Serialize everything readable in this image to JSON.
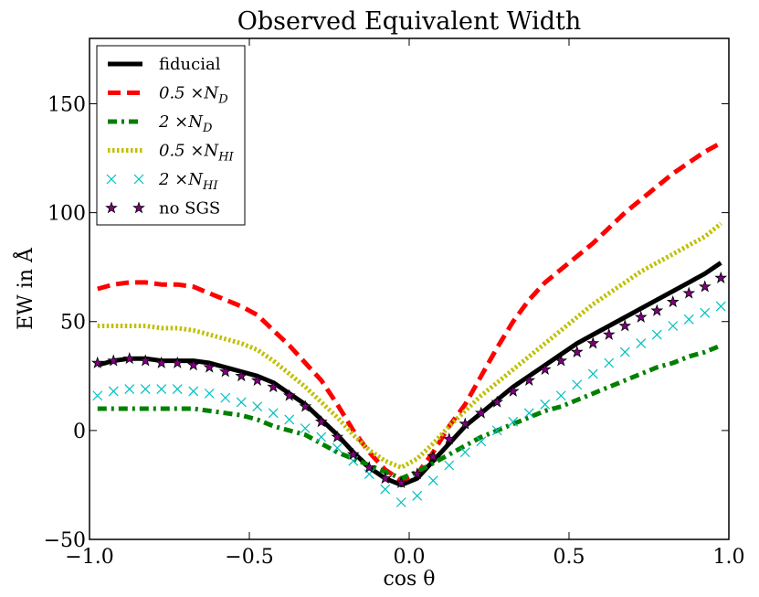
{
  "chart_data": {
    "type": "line",
    "title": "Observed Equivalent Width",
    "xlabel": "cos θ",
    "ylabel": "EW in Å",
    "xlim": [
      -1.0,
      1.0
    ],
    "ylim": [
      -50,
      180
    ],
    "xticks": [
      -1.0,
      -0.5,
      0.0,
      0.5,
      1.0
    ],
    "xtick_labels": [
      "−1.0",
      "−0.5",
      "0.0",
      "0.5",
      "1.0"
    ],
    "yticks": [
      -50,
      0,
      50,
      100,
      150
    ],
    "ytick_labels": [
      "−50",
      "0",
      "50",
      "100",
      "150"
    ],
    "grid": false,
    "legend_position": "top-left",
    "x": [
      -0.975,
      -0.925,
      -0.875,
      -0.825,
      -0.775,
      -0.725,
      -0.675,
      -0.625,
      -0.575,
      -0.525,
      -0.475,
      -0.425,
      -0.375,
      -0.325,
      -0.275,
      -0.225,
      -0.175,
      -0.125,
      -0.075,
      -0.025,
      0.025,
      0.075,
      0.125,
      0.175,
      0.225,
      0.275,
      0.325,
      0.375,
      0.425,
      0.475,
      0.525,
      0.575,
      0.625,
      0.675,
      0.725,
      0.775,
      0.825,
      0.875,
      0.925,
      0.975
    ],
    "series": [
      {
        "name": "fiducial",
        "legend": {
          "main": "fiducial",
          "sub": ""
        },
        "color": "#000000",
        "style": "solid",
        "values": [
          30,
          32,
          33,
          33,
          32,
          32,
          32,
          31,
          29,
          27,
          25,
          22,
          17,
          12,
          5,
          -2,
          -10,
          -17,
          -22,
          -25,
          -22,
          -14,
          -6,
          2,
          8,
          14,
          20,
          25,
          30,
          35,
          40,
          44,
          48,
          52,
          56,
          60,
          64,
          68,
          72,
          77
        ]
      },
      {
        "name": "0.5 ×N_D",
        "legend": {
          "main": "0.5 ×N",
          "sub": "D"
        },
        "color": "#ff0000",
        "style": "dashed",
        "values": [
          65,
          67,
          68,
          68,
          67,
          67,
          66,
          63,
          60,
          57,
          53,
          46,
          39,
          31,
          23,
          12,
          0,
          -10,
          -18,
          -23,
          -20,
          -10,
          2,
          12,
          25,
          38,
          50,
          60,
          68,
          74,
          80,
          86,
          93,
          100,
          106,
          112,
          118,
          123,
          128,
          132
        ]
      },
      {
        "name": "2 ×N_D",
        "legend": {
          "main": "2 ×N",
          "sub": "D"
        },
        "color": "#008000",
        "style": "dashdot",
        "values": [
          10,
          10,
          10,
          10,
          10,
          10,
          10,
          9,
          8,
          7,
          5,
          2,
          0,
          -2,
          -6,
          -10,
          -13,
          -16,
          -19,
          -22,
          -19,
          -15,
          -11,
          -7,
          -3,
          0,
          3,
          6,
          9,
          11,
          14,
          17,
          20,
          23,
          26,
          29,
          31,
          34,
          36,
          39
        ]
      },
      {
        "name": "0.5 ×N_HI",
        "legend": {
          "main": "0.5 ×N",
          "sub": "HI"
        },
        "color": "#bfbf00",
        "style": "dotted",
        "values": [
          48,
          48,
          48,
          48,
          47,
          47,
          46,
          44,
          42,
          40,
          37,
          32,
          26,
          20,
          13,
          6,
          -2,
          -9,
          -14,
          -17,
          -13,
          -6,
          2,
          9,
          16,
          22,
          28,
          34,
          40,
          46,
          52,
          58,
          63,
          68,
          73,
          77,
          81,
          85,
          89,
          95
        ]
      },
      {
        "name": "2 ×N_HI",
        "legend": {
          "main": "2 ×N",
          "sub": "HI"
        },
        "color": "#00bfbf",
        "style": "x",
        "values": [
          16,
          18,
          19,
          19,
          19,
          19,
          18,
          17,
          15,
          13,
          11,
          8,
          5,
          1,
          -3,
          -8,
          -14,
          -20,
          -27,
          -33,
          -30,
          -23,
          -16,
          -10,
          -5,
          0,
          4,
          8,
          12,
          16,
          21,
          26,
          31,
          36,
          40,
          44,
          48,
          51,
          54,
          57
        ]
      },
      {
        "name": "no SGS",
        "legend": {
          "main": "no SGS",
          "sub": ""
        },
        "color": "#800080",
        "style": "star",
        "values": [
          31,
          32,
          33,
          32,
          31,
          31,
          30,
          29,
          27,
          25,
          23,
          20,
          16,
          11,
          4,
          -3,
          -11,
          -17,
          -22,
          -24,
          -20,
          -12,
          -4,
          3,
          8,
          13,
          18,
          23,
          28,
          32,
          36,
          40,
          44,
          48,
          52,
          55,
          59,
          63,
          66,
          70
        ]
      }
    ]
  }
}
